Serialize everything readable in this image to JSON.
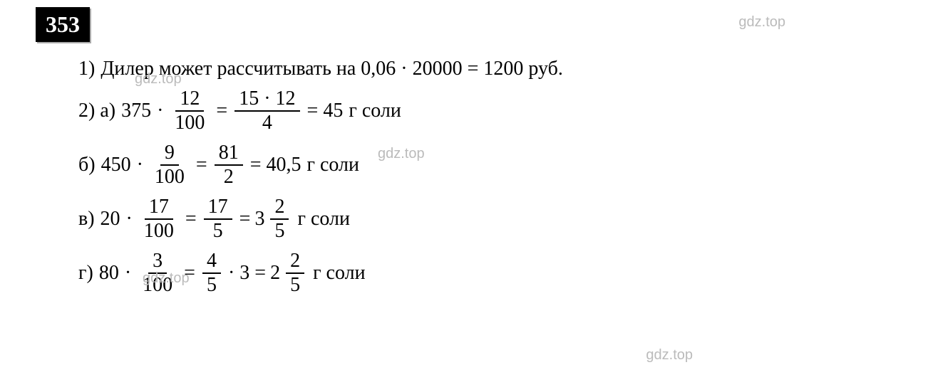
{
  "problem_number": "353",
  "watermark_text": "gdz.top",
  "watermark_color": "#bbbbbb",
  "text_color": "#000000",
  "background_color": "#ffffff",
  "box_bg": "#000000",
  "box_text_color": "#ffffff",
  "font_size_main": 28,
  "line1": {
    "label": "1)",
    "text_prefix": "Дилер может рассчитывать на 0,06 · 20000 = 1200 руб."
  },
  "line2a": {
    "label": "2) а)",
    "lhs_coef": "375",
    "dot": "·",
    "frac1_num": "12",
    "frac1_den": "100",
    "eq": "=",
    "frac2_num": "15 · 12",
    "frac2_den": "4",
    "eq2": "= 45",
    "unit": "г соли"
  },
  "line2b": {
    "label": "б)",
    "lhs_coef": "450",
    "dot": "·",
    "frac1_num": "9",
    "frac1_den": "100",
    "eq": "=",
    "frac2_num": "81",
    "frac2_den": "2",
    "eq2": "= 40,5",
    "unit": "г соли"
  },
  "line2c": {
    "label": "в)",
    "lhs_coef": "20",
    "dot": "·",
    "frac1_num": "17",
    "frac1_den": "100",
    "eq": "=",
    "frac2_num": "17",
    "frac2_den": "5",
    "eq2": "=",
    "mixed_whole": "3",
    "mixed_num": "2",
    "mixed_den": "5",
    "unit": "г соли"
  },
  "line2d": {
    "label": "г)",
    "lhs_coef": "80",
    "dot": "·",
    "frac1_num": "3",
    "frac1_den": "100",
    "eq": "=",
    "frac2_num": "4",
    "frac2_den": "5",
    "mid": "· 3 =",
    "mixed_whole": "2",
    "mixed_num": "2",
    "mixed_den": "5",
    "unit": "г соли"
  }
}
